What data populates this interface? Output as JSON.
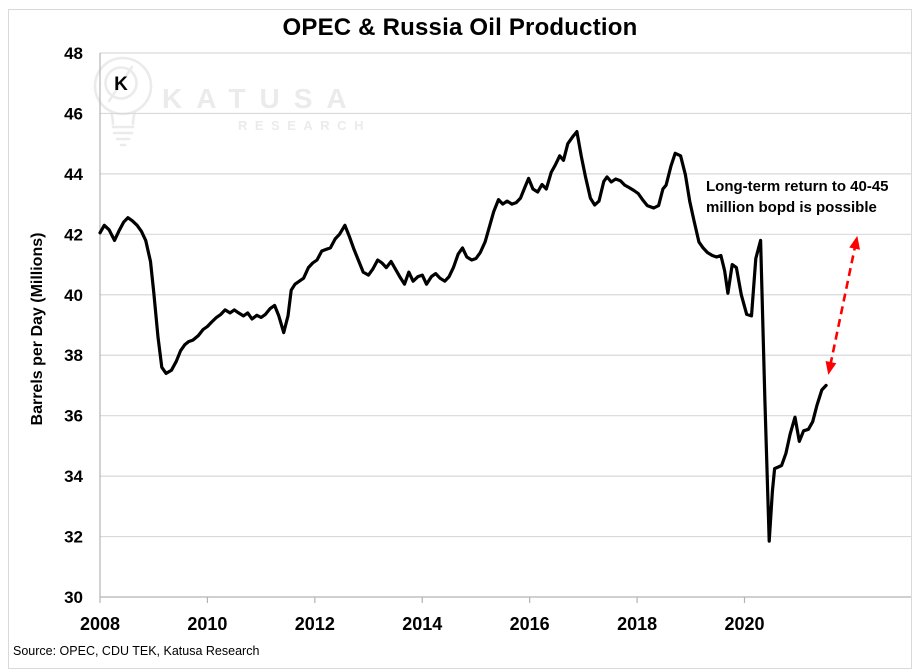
{
  "chart_data": {
    "type": "line",
    "title": "OPEC & Russia Oil Production",
    "xlabel": "",
    "ylabel": "Barrels per Day (Millions)",
    "source": "Source: OPEC, CDU TEK, Katusa Research",
    "xlim": [
      2008,
      2023.1
    ],
    "ylim": [
      30,
      48
    ],
    "x_ticks": [
      2008,
      2010,
      2012,
      2014,
      2016,
      2018,
      2020
    ],
    "y_ticks": [
      30,
      32,
      34,
      36,
      38,
      40,
      42,
      44,
      46,
      48
    ],
    "grid": "horizontal",
    "legend": "none",
    "series": [
      {
        "name": "OPEC & Russia oil production (million barrels per day)",
        "color": "#000000",
        "points": [
          [
            2008.0,
            42.05
          ],
          [
            2008.08,
            42.3
          ],
          [
            2008.17,
            42.15
          ],
          [
            2008.27,
            41.8
          ],
          [
            2008.35,
            42.1
          ],
          [
            2008.44,
            42.4
          ],
          [
            2008.52,
            42.55
          ],
          [
            2008.6,
            42.45
          ],
          [
            2008.69,
            42.3
          ],
          [
            2008.77,
            42.1
          ],
          [
            2008.85,
            41.8
          ],
          [
            2008.94,
            41.1
          ],
          [
            2009.0,
            40.1
          ],
          [
            2009.08,
            38.6
          ],
          [
            2009.15,
            37.6
          ],
          [
            2009.23,
            37.4
          ],
          [
            2009.33,
            37.5
          ],
          [
            2009.42,
            37.8
          ],
          [
            2009.5,
            38.15
          ],
          [
            2009.58,
            38.35
          ],
          [
            2009.65,
            38.45
          ],
          [
            2009.73,
            38.5
          ],
          [
            2009.83,
            38.65
          ],
          [
            2009.92,
            38.85
          ],
          [
            2010.0,
            38.95
          ],
          [
            2010.08,
            39.1
          ],
          [
            2010.17,
            39.25
          ],
          [
            2010.25,
            39.35
          ],
          [
            2010.33,
            39.5
          ],
          [
            2010.42,
            39.4
          ],
          [
            2010.5,
            39.5
          ],
          [
            2010.58,
            39.4
          ],
          [
            2010.67,
            39.3
          ],
          [
            2010.75,
            39.4
          ],
          [
            2010.83,
            39.2
          ],
          [
            2010.92,
            39.32
          ],
          [
            2011.0,
            39.25
          ],
          [
            2011.08,
            39.35
          ],
          [
            2011.17,
            39.55
          ],
          [
            2011.25,
            39.65
          ],
          [
            2011.33,
            39.3
          ],
          [
            2011.42,
            38.75
          ],
          [
            2011.5,
            39.3
          ],
          [
            2011.56,
            40.15
          ],
          [
            2011.63,
            40.35
          ],
          [
            2011.71,
            40.45
          ],
          [
            2011.79,
            40.55
          ],
          [
            2011.88,
            40.9
          ],
          [
            2011.96,
            41.05
          ],
          [
            2012.04,
            41.15
          ],
          [
            2012.13,
            41.45
          ],
          [
            2012.21,
            41.5
          ],
          [
            2012.29,
            41.55
          ],
          [
            2012.38,
            41.85
          ],
          [
            2012.46,
            42.0
          ],
          [
            2012.56,
            42.3
          ],
          [
            2012.65,
            41.9
          ],
          [
            2012.73,
            41.5
          ],
          [
            2012.81,
            41.15
          ],
          [
            2012.9,
            40.75
          ],
          [
            2013.0,
            40.65
          ],
          [
            2013.08,
            40.85
          ],
          [
            2013.17,
            41.15
          ],
          [
            2013.25,
            41.05
          ],
          [
            2013.33,
            40.9
          ],
          [
            2013.42,
            41.1
          ],
          [
            2013.5,
            40.85
          ],
          [
            2013.58,
            40.6
          ],
          [
            2013.67,
            40.35
          ],
          [
            2013.75,
            40.75
          ],
          [
            2013.83,
            40.45
          ],
          [
            2013.92,
            40.6
          ],
          [
            2014.0,
            40.65
          ],
          [
            2014.08,
            40.35
          ],
          [
            2014.17,
            40.6
          ],
          [
            2014.25,
            40.7
          ],
          [
            2014.33,
            40.55
          ],
          [
            2014.42,
            40.45
          ],
          [
            2014.5,
            40.6
          ],
          [
            2014.58,
            40.9
          ],
          [
            2014.67,
            41.35
          ],
          [
            2014.75,
            41.55
          ],
          [
            2014.83,
            41.25
          ],
          [
            2014.92,
            41.15
          ],
          [
            2015.0,
            41.2
          ],
          [
            2015.08,
            41.4
          ],
          [
            2015.17,
            41.75
          ],
          [
            2015.25,
            42.25
          ],
          [
            2015.33,
            42.75
          ],
          [
            2015.42,
            43.15
          ],
          [
            2015.5,
            43.0
          ],
          [
            2015.58,
            43.1
          ],
          [
            2015.67,
            43.0
          ],
          [
            2015.75,
            43.05
          ],
          [
            2015.83,
            43.2
          ],
          [
            2015.92,
            43.6
          ],
          [
            2015.98,
            43.85
          ],
          [
            2016.06,
            43.5
          ],
          [
            2016.15,
            43.4
          ],
          [
            2016.23,
            43.65
          ],
          [
            2016.31,
            43.5
          ],
          [
            2016.4,
            44.05
          ],
          [
            2016.48,
            44.3
          ],
          [
            2016.56,
            44.6
          ],
          [
            2016.63,
            44.45
          ],
          [
            2016.71,
            45.0
          ],
          [
            2016.81,
            45.25
          ],
          [
            2016.88,
            45.4
          ],
          [
            2016.96,
            44.6
          ],
          [
            2017.04,
            43.9
          ],
          [
            2017.13,
            43.2
          ],
          [
            2017.21,
            42.97
          ],
          [
            2017.29,
            43.1
          ],
          [
            2017.38,
            43.75
          ],
          [
            2017.44,
            43.9
          ],
          [
            2017.52,
            43.73
          ],
          [
            2017.6,
            43.83
          ],
          [
            2017.69,
            43.77
          ],
          [
            2017.77,
            43.63
          ],
          [
            2017.85,
            43.55
          ],
          [
            2017.94,
            43.45
          ],
          [
            2018.02,
            43.35
          ],
          [
            2018.1,
            43.15
          ],
          [
            2018.19,
            42.95
          ],
          [
            2018.31,
            42.87
          ],
          [
            2018.4,
            42.95
          ],
          [
            2018.48,
            43.5
          ],
          [
            2018.54,
            43.63
          ],
          [
            2018.63,
            44.25
          ],
          [
            2018.71,
            44.68
          ],
          [
            2018.81,
            44.6
          ],
          [
            2018.9,
            43.97
          ],
          [
            2018.98,
            43.1
          ],
          [
            2019.06,
            42.45
          ],
          [
            2019.15,
            41.75
          ],
          [
            2019.23,
            41.55
          ],
          [
            2019.31,
            41.4
          ],
          [
            2019.4,
            41.3
          ],
          [
            2019.48,
            41.25
          ],
          [
            2019.56,
            41.3
          ],
          [
            2019.63,
            40.8
          ],
          [
            2019.69,
            40.05
          ],
          [
            2019.77,
            41.0
          ],
          [
            2019.85,
            40.9
          ],
          [
            2019.94,
            40.0
          ],
          [
            2020.04,
            39.35
          ],
          [
            2020.13,
            39.3
          ],
          [
            2020.21,
            41.2
          ],
          [
            2020.3,
            41.8
          ],
          [
            2020.38,
            36.5
          ],
          [
            2020.46,
            31.85
          ],
          [
            2020.52,
            33.5
          ],
          [
            2020.56,
            34.25
          ],
          [
            2020.63,
            34.3
          ],
          [
            2020.69,
            34.35
          ],
          [
            2020.77,
            34.75
          ],
          [
            2020.85,
            35.4
          ],
          [
            2020.94,
            35.95
          ],
          [
            2021.02,
            35.15
          ],
          [
            2021.1,
            35.5
          ],
          [
            2021.19,
            35.55
          ],
          [
            2021.27,
            35.8
          ],
          [
            2021.35,
            36.35
          ],
          [
            2021.44,
            36.85
          ],
          [
            2021.52,
            37.0
          ]
        ]
      }
    ],
    "annotation": {
      "text_line1": "Long-term return to 40-45",
      "text_line2": "million bopd is possible",
      "arrow": {
        "from": [
          2021.56,
          37.35
        ],
        "to": [
          2022.1,
          41.95
        ],
        "color": "#ff0000",
        "style": "dashed",
        "double_headed": true
      }
    },
    "watermark": {
      "line1": "KATUSA",
      "line2": "RESEARCH",
      "icon": "lightbulb-k-logo"
    },
    "colors": {
      "line": "#000000",
      "grid": "#d9d9d9",
      "axis": "#b3b3b3",
      "arrow": "#ff0000",
      "watermark": "#ebebeb",
      "text": "#000000"
    }
  }
}
